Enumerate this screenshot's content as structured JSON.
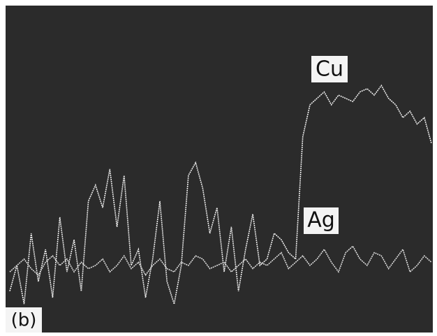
{
  "chart_data": {
    "type": "line",
    "panel_label": "(b)",
    "ylim": [
      0,
      100
    ],
    "series": [
      {
        "name": "Cu",
        "color": "#ececec",
        "values": [
          12,
          20,
          8,
          30,
          15,
          25,
          10,
          35,
          18,
          28,
          12,
          40,
          45,
          38,
          50,
          32,
          48,
          20,
          25,
          10,
          22,
          40,
          15,
          8,
          20,
          48,
          52,
          44,
          30,
          38,
          18,
          32,
          12,
          25,
          36,
          20,
          22,
          30,
          28,
          24,
          22,
          60,
          70,
          72,
          74,
          70,
          73,
          72,
          71,
          74,
          75,
          73,
          76,
          72,
          70,
          66,
          68,
          64,
          66,
          58
        ]
      },
      {
        "name": "Ag",
        "color": "#dcdcdc",
        "values": [
          18,
          20,
          22,
          19,
          17,
          21,
          23,
          20,
          22,
          18,
          21,
          19,
          20,
          22,
          18,
          20,
          23,
          19,
          21,
          17,
          20,
          22,
          19,
          18,
          21,
          20,
          23,
          22,
          19,
          20,
          21,
          18,
          20,
          22,
          19,
          21,
          20,
          22,
          24,
          19,
          21,
          23,
          20,
          22,
          25,
          21,
          18,
          24,
          26,
          22,
          20,
          24,
          23,
          19,
          22,
          25,
          18,
          20,
          23,
          21
        ]
      }
    ]
  }
}
